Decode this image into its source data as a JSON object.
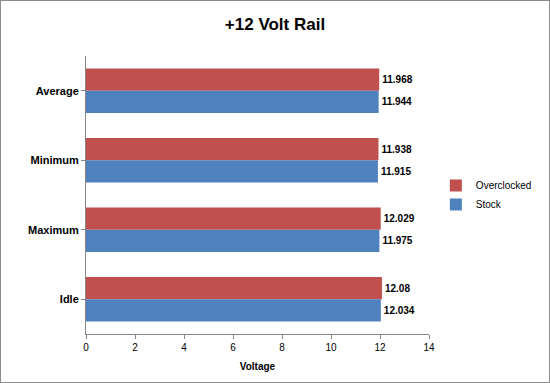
{
  "chart_data": {
    "type": "bar",
    "orientation": "horizontal",
    "title": "+12 Volt Rail",
    "x_label": "Voltage",
    "categories": [
      "Average",
      "Minimum",
      "Maximum",
      "Idle"
    ],
    "series": [
      {
        "name": "Overclocked",
        "color": "#c0504d",
        "values": [
          11.968,
          11.938,
          12.029,
          12.08
        ]
      },
      {
        "name": "Stock",
        "color": "#4f81bd",
        "values": [
          11.944,
          11.915,
          11.975,
          12.034
        ]
      }
    ],
    "xlim": [
      0,
      14
    ],
    "xticks": [
      0,
      2,
      4,
      6,
      8,
      10,
      12,
      14
    ],
    "grid": false,
    "legend": "right",
    "data_labels": true
  }
}
